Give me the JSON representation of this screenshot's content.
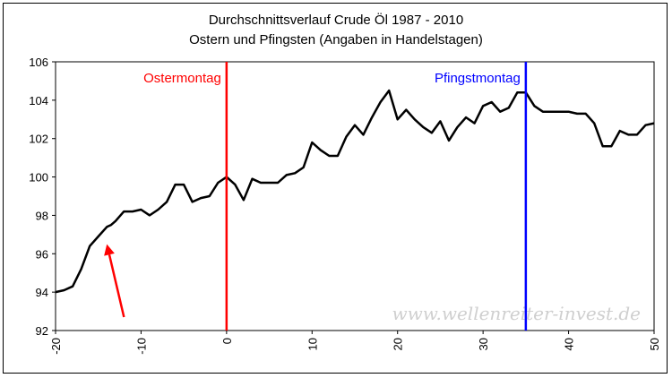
{
  "chart_data": {
    "type": "line",
    "title": "Durchschnittsverlauf Crude Öl 1987 - 2010",
    "subtitle": "Ostern und Pfingsten (Angaben in Handelstagen)",
    "xlabel": "",
    "ylabel": "",
    "xlim": [
      -20,
      50
    ],
    "ylim": [
      92,
      106
    ],
    "xticks": [
      "-20",
      "-10",
      "0",
      "10",
      "20",
      "30",
      "40",
      "50"
    ],
    "yticks": [
      "92",
      "94",
      "96",
      "98",
      "100",
      "102",
      "104",
      "106"
    ],
    "grid": false,
    "series": [
      {
        "color": "#000000",
        "x": [
          -20,
          -19,
          -18,
          -17,
          -16,
          -15,
          -14,
          -13.5,
          -13,
          -12,
          -11,
          -10,
          -9,
          -8,
          -7,
          -6,
          -5,
          -4,
          -3,
          -2,
          -1,
          0,
          1,
          2,
          3,
          4,
          5,
          6,
          7,
          8,
          9,
          10,
          11,
          12,
          13,
          14,
          15,
          16,
          17,
          18,
          19,
          20,
          21,
          22,
          23,
          24,
          25,
          26,
          27,
          28,
          29,
          30,
          31,
          32,
          33,
          34,
          35,
          36,
          37,
          38,
          39,
          40,
          41,
          42,
          43,
          44,
          45,
          46,
          47,
          48,
          49,
          50
        ],
        "y": [
          94.0,
          94.1,
          94.3,
          95.2,
          96.4,
          96.9,
          97.4,
          97.5,
          97.7,
          98.2,
          98.2,
          98.3,
          98.0,
          98.3,
          98.7,
          99.6,
          99.6,
          98.7,
          98.9,
          99.0,
          99.7,
          100.0,
          99.6,
          98.8,
          99.9,
          99.7,
          99.7,
          99.7,
          100.1,
          100.2,
          100.5,
          101.8,
          101.4,
          101.1,
          101.1,
          102.1,
          102.7,
          102.2,
          103.1,
          103.9,
          104.5,
          103.0,
          103.5,
          103.0,
          102.6,
          102.3,
          102.9,
          101.9,
          102.6,
          103.1,
          102.8,
          103.7,
          103.9,
          103.4,
          103.6,
          104.4,
          104.4,
          103.7,
          103.4,
          103.4,
          103.4,
          103.4,
          103.3,
          103.3,
          102.8,
          101.6,
          101.6,
          102.4,
          102.2,
          102.2,
          102.7,
          102.8
        ]
      }
    ],
    "annotations": [
      {
        "label": "Ostermontag",
        "x": 0,
        "color": "#ff0000"
      },
      {
        "label": "Pfingstmontag",
        "x": 35,
        "color": "#0000ff"
      }
    ],
    "arrow": {
      "color": "#ff0000",
      "from": [
        -12,
        92.7
      ],
      "to": [
        -14,
        96.5
      ]
    },
    "watermark": "www.wellenreiter-invest.de"
  }
}
